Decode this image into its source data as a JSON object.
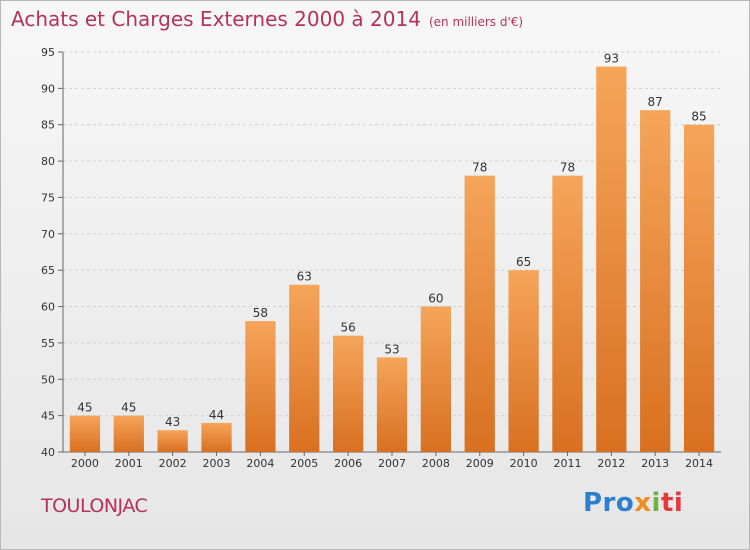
{
  "header": {
    "title": "Achats et Charges Externes 2000 à 2014",
    "unit": "(en milliers d'€)"
  },
  "footer": {
    "place": "TOULONJAC",
    "brand": [
      "Pro",
      "x",
      "i",
      "ti"
    ]
  },
  "colors": {
    "bar_top": "#f5a55a",
    "bar_bottom": "#d97020",
    "title": "#b5325a"
  },
  "chart_data": {
    "type": "bar",
    "title": "Achats et Charges Externes 2000 à 2014",
    "subtitle": "(en milliers d'€)",
    "xlabel": "",
    "ylabel": "",
    "categories": [
      "2000",
      "2001",
      "2002",
      "2003",
      "2004",
      "2005",
      "2006",
      "2007",
      "2008",
      "2009",
      "2010",
      "2011",
      "2012",
      "2013",
      "2014"
    ],
    "values": [
      45,
      45,
      43,
      44,
      58,
      63,
      56,
      53,
      60,
      78,
      65,
      78,
      93,
      87,
      85
    ],
    "ylim": [
      40,
      95
    ],
    "yticks": [
      40,
      45,
      50,
      55,
      60,
      65,
      70,
      75,
      80,
      85,
      90,
      95
    ],
    "grid": true,
    "legend": "none"
  }
}
